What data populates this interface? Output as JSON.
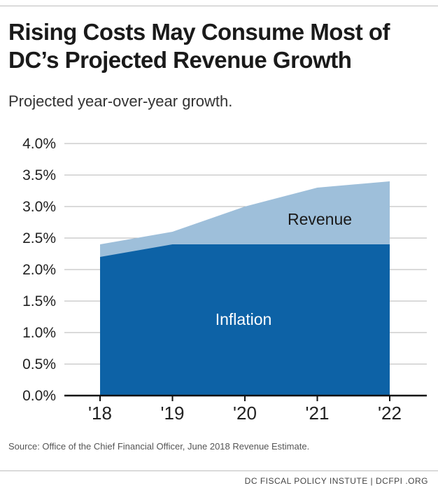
{
  "header": {
    "title": "Rising Costs May Consume Most of DC’s Projected Revenue Growth",
    "subtitle": "Projected year-over-year growth."
  },
  "footer": {
    "source": "Source: Office of the Chief Financial Officer, June 2018 Revenue Estimate.",
    "credit": "DC FISCAL POLICY INSTUTE  |  DCFPI .ORG"
  },
  "colors": {
    "revenue": "#9ebfda",
    "inflation": "#0d62a6",
    "grid": "#b5b5b5",
    "axis": "#111111",
    "inflation_label": "#ffffff",
    "revenue_label": "#1a1a1a"
  },
  "chart_data": {
    "type": "area",
    "title": "Rising Costs May Consume Most of DC’s Projected Revenue Growth",
    "subtitle": "Projected year-over-year growth.",
    "x": [
      "'18",
      "'19",
      "'20",
      "'21",
      "'22"
    ],
    "series": [
      {
        "name": "Revenue",
        "values": [
          2.4,
          2.6,
          3.0,
          3.3,
          3.4
        ]
      },
      {
        "name": "Inflation",
        "values": [
          2.2,
          2.4,
          2.4,
          2.4,
          2.4
        ]
      }
    ],
    "y_ticks": [
      "0.0%",
      "0.5%",
      "1.0%",
      "1.5%",
      "2.0%",
      "2.5%",
      "3.0%",
      "3.5%",
      "4.0%"
    ],
    "ylim": [
      0,
      4
    ],
    "y_unit": "%",
    "grid": true,
    "legend": "labels placed inside areas"
  }
}
